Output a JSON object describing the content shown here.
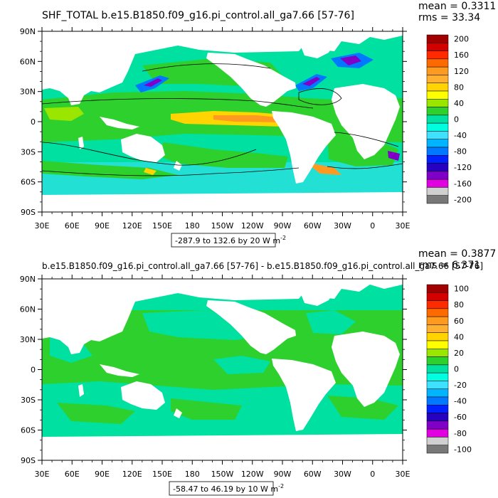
{
  "top": {
    "title": "SHF_TOTAL b.e15.B1850.f09_g16.pi_control.all_ga7.66 [57-76]",
    "mean_text": "mean = 0.3311",
    "rms_text": "rms = 33.34",
    "contour_info": "-287.9 to 132.6 by 20  W m",
    "unit_exp": "-2",
    "colorbar_labels": [
      "200",
      "160",
      "120",
      "80",
      "40",
      "0",
      "-40",
      "-80",
      "-120",
      "-160",
      "-200"
    ],
    "colorbar_colors": [
      "#a00000",
      "#d40000",
      "#ff2a00",
      "#ff6a00",
      "#ff9a20",
      "#ffb030",
      "#ffd400",
      "#ffff00",
      "#9be600",
      "#2ed02e",
      "#00e0a0",
      "#00ffe0",
      "#40e0ff",
      "#00b4ff",
      "#0078ff",
      "#0020ff",
      "#2800c0",
      "#8000c8",
      "#e000e0",
      "#d0d0d0",
      "#787878"
    ]
  },
  "bottom": {
    "title": "b.e15.B1850.f09_g16.pi_control.all_ga7.66 [57-76] - b.e15.B1850.f09_g16.pi_control.all_ga7.66 [57-76]",
    "mean_text": "mean = 0.3877",
    "rms_text": "rms = 6.371",
    "contour_info": "-58.47 to 46.19 by 10  W m",
    "unit_exp": "-2",
    "colorbar_labels": [
      "100",
      "80",
      "60",
      "40",
      "20",
      "0",
      "-20",
      "-40",
      "-60",
      "-80",
      "-100"
    ],
    "colorbar_colors": [
      "#a00000",
      "#d40000",
      "#ff2a00",
      "#ff6a00",
      "#ff9a20",
      "#ffb030",
      "#ffd400",
      "#ffff00",
      "#9be600",
      "#2ed02e",
      "#00e0a0",
      "#00ffe0",
      "#40e0ff",
      "#00b4ff",
      "#0078ff",
      "#0020ff",
      "#2800c0",
      "#8000c8",
      "#e000e0",
      "#d0d0d0",
      "#787878"
    ]
  },
  "axes": {
    "lat_labels": [
      "90N",
      "60N",
      "30N",
      "0",
      "30S",
      "60S",
      "90S"
    ],
    "lon_labels": [
      "30E",
      "60E",
      "90E",
      "120E",
      "150E",
      "180",
      "150W",
      "120W",
      "90W",
      "60W",
      "30W",
      "0",
      "30E"
    ]
  },
  "colors": {
    "ocean_green": "#2ed02e",
    "ocean_cyan": "#00e0a0",
    "ocean_light": "#40e0ff",
    "land": "#ffffff",
    "warm_yellow": "#ffd400",
    "warm_orange": "#ff9a20",
    "cold_blue": "#0078ff",
    "cold_purple": "#8000c8"
  }
}
